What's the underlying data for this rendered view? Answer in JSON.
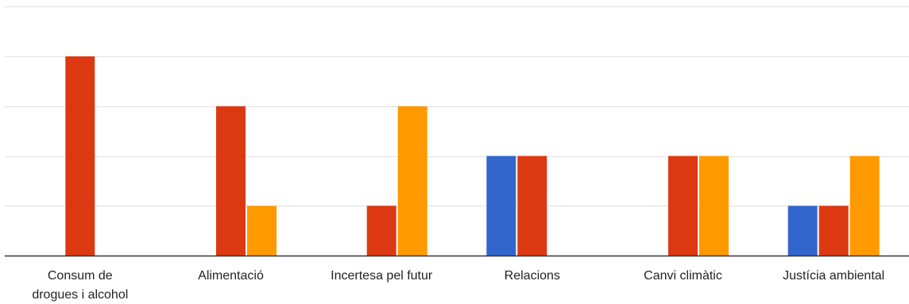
{
  "chart_data": {
    "type": "bar",
    "title": "",
    "xlabel": "",
    "ylabel": "",
    "categories": [
      [
        "Consum de",
        "drogues i alcohol"
      ],
      [
        "Alimentació"
      ],
      [
        "Incertesa pel futur"
      ],
      [
        "Relacions"
      ],
      [
        "Canvi climàtic"
      ],
      [
        "Justícia ambiental"
      ]
    ],
    "series": [
      {
        "color": "#3366cc",
        "values": [
          0,
          0,
          0,
          2,
          0,
          1
        ]
      },
      {
        "color": "#dc3912",
        "values": [
          4,
          3,
          1,
          2,
          2,
          1
        ]
      },
      {
        "color": "#ff9900",
        "values": [
          0,
          1,
          3,
          0,
          2,
          2
        ]
      }
    ],
    "ylim": [
      0,
      5
    ],
    "yticks": [
      0,
      1,
      2,
      3,
      4,
      5
    ],
    "grid": true,
    "legend": "none",
    "colors": {
      "gridline": "#e0e0e0",
      "baseline": "#333333"
    }
  }
}
